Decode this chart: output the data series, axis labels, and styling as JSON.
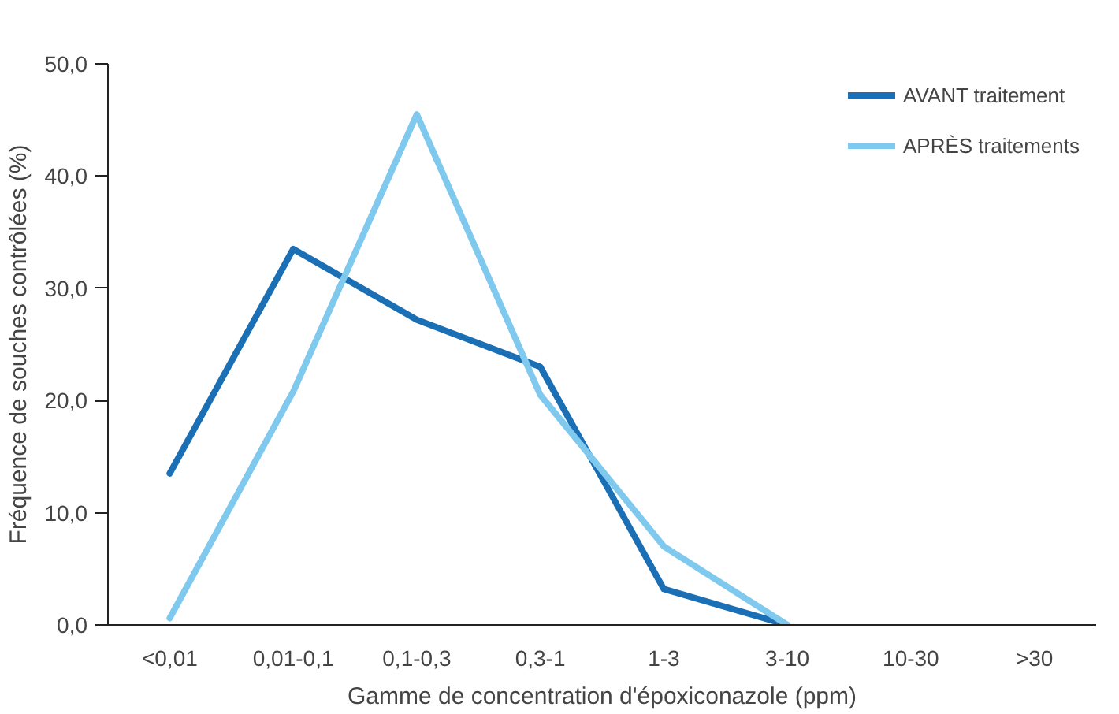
{
  "chart_data": {
    "type": "line",
    "xlabel": "Gamme de concentration d'époxiconazole (ppm)",
    "ylabel": "Fréquence de souches contrôlées (%)",
    "categories": [
      "<0,01",
      "0,01-0,1",
      "0,1-0,3",
      "0,3-1",
      "1-3",
      "3-10",
      "10-30",
      ">30"
    ],
    "ylim": [
      0,
      50
    ],
    "yticks": [
      {
        "value": 0,
        "label": "0,0"
      },
      {
        "value": 10,
        "label": "10,0"
      },
      {
        "value": 20,
        "label": "20,0"
      },
      {
        "value": 30,
        "label": "30,0"
      },
      {
        "value": 40,
        "label": "40,0"
      },
      {
        "value": 50,
        "label": "50,0"
      }
    ],
    "grid": false,
    "legend": "top right",
    "line_style": "solid",
    "series": [
      {
        "name": "AVANT traitement",
        "color": "#1a6fb5",
        "values": [
          13.5,
          33.5,
          27.2,
          23.0,
          3.2,
          0,
          null,
          null
        ]
      },
      {
        "name": "APRÈS traitements",
        "color": "#7fc8ee",
        "values": [
          0.6,
          20.8,
          45.5,
          20.5,
          7.0,
          0,
          null,
          null
        ]
      }
    ]
  }
}
